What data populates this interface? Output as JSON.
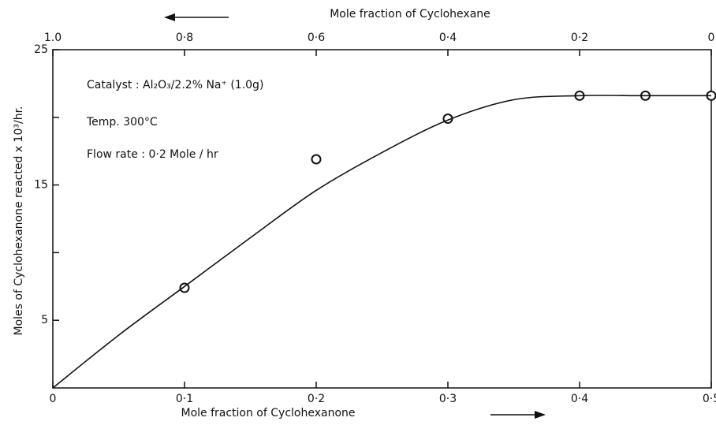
{
  "chart_data": {
    "type": "scatter",
    "xlabel": "Mole fraction of Cyclohexanone",
    "x2label": "Mole fraction of Cyclohexane",
    "ylabel": "Moles of Cyclohexanone reacted x 10³/hr.",
    "annotations": [
      "Catalyst : Al₂O₃/2.2% Na⁺ (1.0g)",
      "Temp. 300°C",
      "Flow rate : 0·2 Mole / hr"
    ],
    "xlim": [
      0,
      0.5
    ],
    "xticks": [
      0,
      {
        "value": 0.1,
        "label": "0·1"
      },
      {
        "value": 0.2,
        "label": "0·2"
      },
      {
        "value": 0.3,
        "label": "0·3"
      },
      {
        "value": 0.4,
        "label": "0·4"
      },
      {
        "value": 0.5,
        "label": "0·5"
      }
    ],
    "x2lim": [
      1,
      0
    ],
    "x2ticks": [
      {
        "value": 1,
        "label": "1.0"
      },
      {
        "value": 0.8,
        "label": "0·8"
      },
      {
        "value": 0.6,
        "label": "0·6"
      },
      {
        "value": 0.4,
        "label": "0·4"
      },
      {
        "value": 0.2,
        "label": "0·2"
      },
      0
    ],
    "ylim": [
      0,
      25
    ],
    "yticks": [
      5,
      15,
      25
    ],
    "yminor_ticks": [
      10,
      20
    ],
    "color": "#111111",
    "series": [
      {
        "style": "marker",
        "x": [
          0.1,
          0.2,
          0.3,
          0.4,
          0.45,
          0.5
        ],
        "values": [
          7.4,
          16.9,
          19.9,
          21.6,
          21.6,
          21.6
        ]
      },
      {
        "style": "line",
        "x": [
          0,
          0.05,
          0.1,
          0.15,
          0.2,
          0.25,
          0.3,
          0.35,
          0.4,
          0.45,
          0.5
        ],
        "values": [
          0,
          3.9,
          7.5,
          11.1,
          14.6,
          17.4,
          19.8,
          21.3,
          21.6,
          21.6,
          21.6
        ]
      }
    ]
  }
}
